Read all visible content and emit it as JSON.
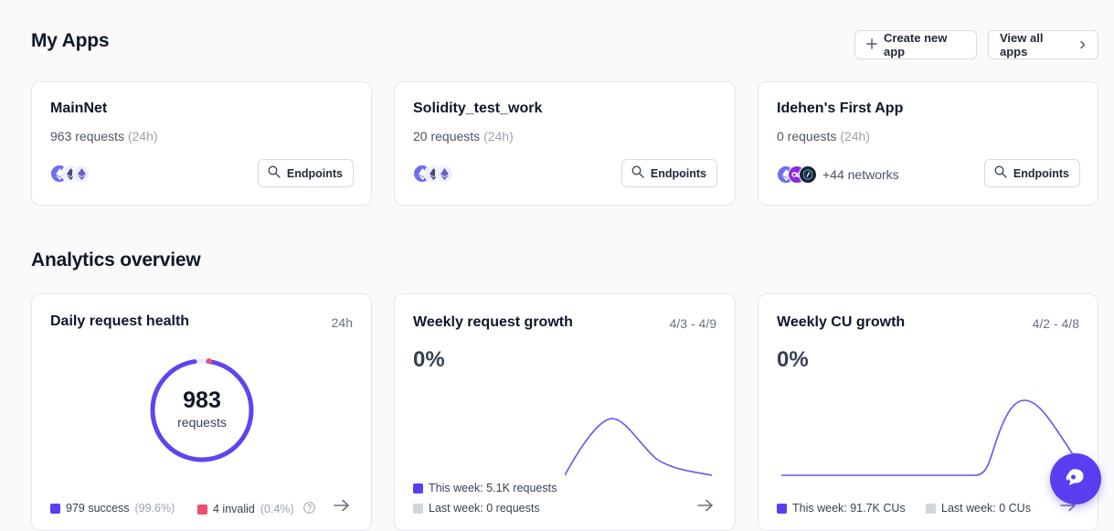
{
  "header": {
    "title": "My Apps",
    "create_label": "Create new app",
    "view_all_label": "View all apps"
  },
  "apps": [
    {
      "name": "MainNet",
      "requests": "963 requests",
      "window": "(24h)",
      "endpoints_label": "Endpoints"
    },
    {
      "name": "Solidity_test_work",
      "requests": "20 requests",
      "window": "(24h)",
      "endpoints_label": "Endpoints"
    },
    {
      "name": "Idehen's First App",
      "requests": "0 requests",
      "window": "(24h)",
      "endpoints_label": "Endpoints",
      "more_networks": "+44 networks"
    }
  ],
  "analytics": {
    "title": "Analytics overview",
    "daily": {
      "title": "Daily request health",
      "range": "24h",
      "total": "983",
      "total_label": "requests",
      "success": "979 success",
      "success_pct": "(99.6%)",
      "invalid": "4 invalid",
      "invalid_pct": "(0.4%)",
      "success_fraction": 0.996
    },
    "weekly_requests": {
      "title": "Weekly request growth",
      "range": "4/3 - 4/9",
      "growth": "0%",
      "this_week": "This week: 5.1K requests",
      "last_week": "Last week: 0 requests"
    },
    "weekly_cu": {
      "title": "Weekly CU growth",
      "range": "4/2 - 4/8",
      "growth": "0%",
      "this_week": "This week: 91.7K CUs",
      "last_week": "Last week: 0 CUs"
    }
  },
  "colors": {
    "accent": "#5b3ef0",
    "invalid": "#f0506e",
    "last_week": "#cfd6de"
  },
  "icons": {
    "create": "plus-icon",
    "view_all": "chevron-right-icon",
    "endpoints": "search-icon",
    "arrow": "arrow-right-icon",
    "fab": "chat-icon"
  }
}
